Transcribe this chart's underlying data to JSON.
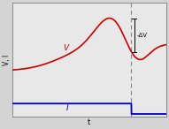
{
  "bg_color": "#d4d4d4",
  "plot_bg_color": "#e8e8e8",
  "ylabel": "V, I",
  "xlabel": "t",
  "voltage_color": "#cc0000",
  "current_color": "#0000bb",
  "dashed_color": "#888888",
  "annotation_color": "#000000",
  "label_V": "V",
  "label_I": "I",
  "label_dV": "-ΔV",
  "xlim": [
    0,
    10
  ],
  "ylim": [
    -0.42,
    1.0
  ]
}
